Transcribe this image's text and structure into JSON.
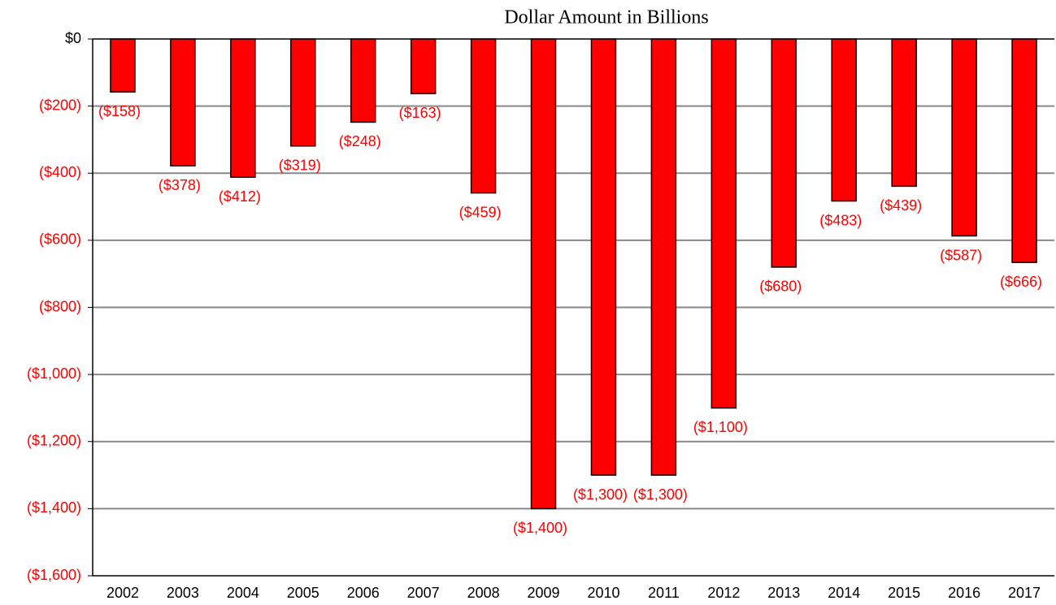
{
  "chart_data": {
    "type": "bar",
    "title": "Dollar Amount in Billions",
    "categories": [
      "2002",
      "2003",
      "2004",
      "2005",
      "2006",
      "2007",
      "2008",
      "2009",
      "2010",
      "2011",
      "2012",
      "2013",
      "2014",
      "2015",
      "2016",
      "2017"
    ],
    "values": [
      -158,
      -378,
      -412,
      -319,
      -248,
      -163,
      -459,
      -1400,
      -1300,
      -1300,
      -1100,
      -680,
      -483,
      -439,
      -587,
      -666
    ],
    "value_labels": [
      "($158)",
      "($378)",
      "($412)",
      "($319)",
      "($248)",
      "($163)",
      "($459)",
      "($1,400)",
      "($1,300)",
      "($1,300)",
      "($1,100)",
      "($680)",
      "($483)",
      "($439)",
      "($587)",
      "($666)"
    ],
    "color": "#ff0000",
    "label_color": "#ff0000",
    "negative_tick_color": "#ff0000",
    "ylim": [
      -1600,
      0
    ],
    "yticks": [
      {
        "value": 0,
        "label": "$0"
      },
      {
        "value": -200,
        "label": "($200)"
      },
      {
        "value": -400,
        "label": "($400)"
      },
      {
        "value": -600,
        "label": "($600)"
      },
      {
        "value": -800,
        "label": "($800)"
      },
      {
        "value": -1000,
        "label": "($1,000)"
      },
      {
        "value": -1200,
        "label": "($1,200)"
      },
      {
        "value": -1400,
        "label": "($1,400)"
      },
      {
        "value": -1600,
        "label": "($1,600)"
      }
    ],
    "grid": true
  }
}
